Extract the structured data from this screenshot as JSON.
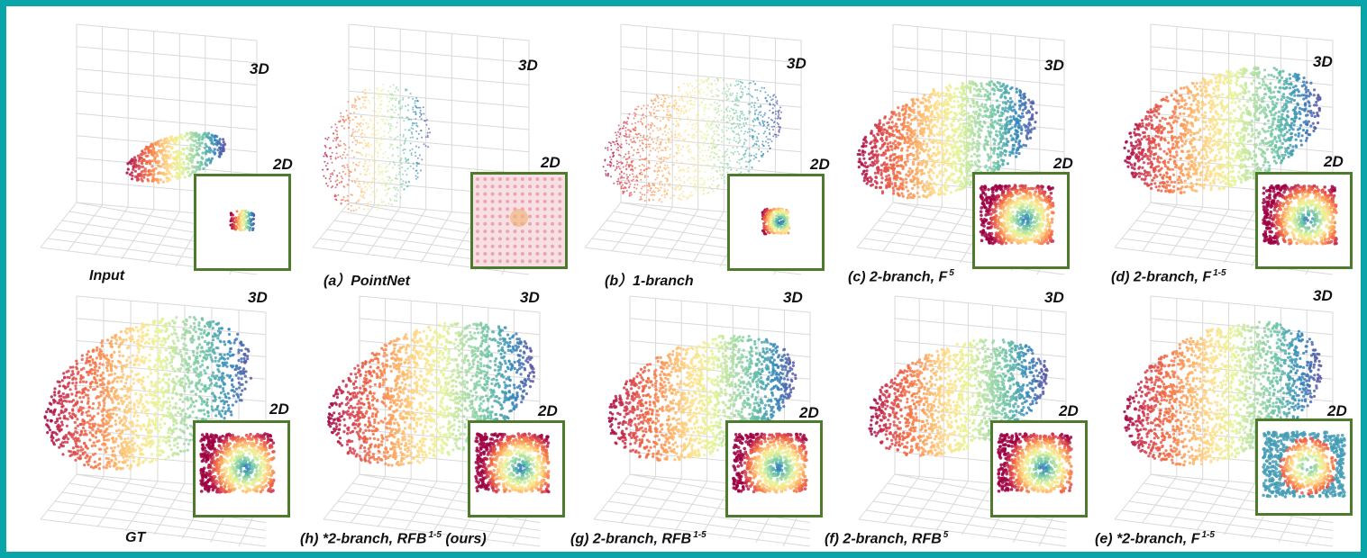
{
  "labels": {
    "three_d": "3D",
    "two_d": "2D"
  },
  "colors": {
    "frame": "#0aa5a8",
    "inset_border": "#4e7a2b"
  },
  "panels": [
    {
      "caption": "Input",
      "sup": "",
      "suffix": ""
    },
    {
      "caption": "(a）PointNet",
      "sup": "",
      "suffix": ""
    },
    {
      "caption": "(b）1-branch",
      "sup": "",
      "suffix": ""
    },
    {
      "caption": "(c) 2-branch, F",
      "sup": "5",
      "suffix": ""
    },
    {
      "caption": "(d) 2-branch, F",
      "sup": "1-5",
      "suffix": ""
    },
    {
      "caption": "GT",
      "sup": "",
      "suffix": ""
    },
    {
      "caption": "(h) *2-branch, RFB",
      "sup": "1-5",
      "suffix": " (ours)"
    },
    {
      "caption": "(g) 2-branch, RFB",
      "sup": "1-5",
      "suffix": ""
    },
    {
      "caption": "(f) 2-branch, RFB",
      "sup": "5",
      "suffix": ""
    },
    {
      "caption": "(e) *2-branch, F",
      "sup": "1-5",
      "suffix": ""
    }
  ]
}
